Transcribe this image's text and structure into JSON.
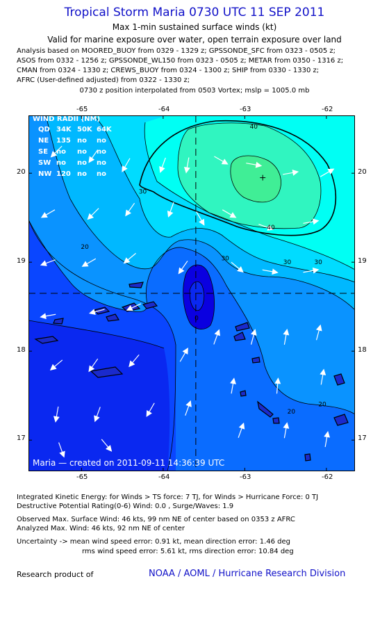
{
  "header": {
    "title": "Tropical Storm Maria 0730 UTC 11 SEP 2011",
    "subtitle1": "Max 1-min sustained surface winds (kt)",
    "subtitle2": "Valid for marine exposure over water, open terrain exposure over land",
    "analysis_lines": [
      "Analysis based on MOORED_BUOY from 0329 - 1329 z; GPSSONDE_SFC from 0323 - 0505 z;",
      "ASOS from 0332 - 1256 z; GPSSONDE_WL150 from 0323 - 0505 z; METAR from 0350 - 1316 z;",
      "CMAN from 0324 - 1330 z; CREWS_BUOY from 0324 - 1300 z; SHIP from 0330 - 1330 z;",
      "AFRC (User-defined adjusted) from 0322 - 1330 z;"
    ],
    "position_note": "0730 z position interpolated from 0503 Vortex; mslp = 1005.0 mb"
  },
  "map": {
    "lon_range": [
      -65.65,
      -61.65
    ],
    "lat_range": [
      16.65,
      20.65
    ],
    "lon_ticks": [
      -65,
      -64,
      -63,
      -62
    ],
    "lat_ticks": [
      17,
      18,
      19,
      20
    ],
    "lon_tick_labels": [
      "-65",
      "-64",
      "-63",
      "-62"
    ],
    "lat_tick_labels": [
      "17",
      "18",
      "19",
      "20"
    ],
    "center": {
      "lon": -63.6,
      "lat": 18.65
    },
    "max_wind_marker": {
      "lon": -62.78,
      "lat": 19.95
    },
    "contour_levels": [
      20,
      30,
      40
    ],
    "contour_labels": [
      {
        "text": "40",
        "lon": -62.89,
        "lat": 20.5
      },
      {
        "text": "40",
        "lon": -62.68,
        "lat": 19.37
      },
      {
        "text": "30",
        "lon": -64.25,
        "lat": 19.77
      },
      {
        "text": "30",
        "lon": -63.24,
        "lat": 19.02
      },
      {
        "text": "30",
        "lon": -62.48,
        "lat": 18.98
      },
      {
        "text": "30",
        "lon": -62.1,
        "lat": 18.98
      },
      {
        "text": "20",
        "lon": -64.96,
        "lat": 19.15
      },
      {
        "text": "20",
        "lon": -62.43,
        "lat": 17.3
      },
      {
        "text": "20",
        "lon": -62.05,
        "lat": 17.38
      },
      {
        "text": "0",
        "lon": -63.59,
        "lat": 18.35
      }
    ],
    "colors": {
      "c0": "#0a00e0",
      "c5": "#0a28f0",
      "c10": "#0a46ff",
      "c15": "#0a6cff",
      "c20": "#0a93ff",
      "c25": "#00b8ff",
      "c30": "#00dcff",
      "c35": "#00fff4",
      "c40": "#30f5c0",
      "c45": "#40ee96"
    },
    "wind_radii": {
      "heading": "WIND RADII (NM)",
      "header_row": [
        "QD",
        "34K",
        "50K",
        "64K"
      ],
      "rows": [
        [
          "NE",
          "135",
          "no",
          "no"
        ],
        [
          "SE",
          "no",
          "no",
          "no"
        ],
        [
          "SW",
          "no",
          "no",
          "no"
        ],
        [
          "NW",
          "120",
          "no",
          "no"
        ]
      ]
    },
    "credit": "Maria — created on 2011-09-11 14:36:39 UTC",
    "wind_arrows": [
      {
        "lon": -65.3,
        "lat": 20.25,
        "dir": 225
      },
      {
        "lon": -64.85,
        "lat": 20.2,
        "dir": 215
      },
      {
        "lon": -64.45,
        "lat": 20.1,
        "dir": 210
      },
      {
        "lon": -64.0,
        "lat": 20.1,
        "dir": 200
      },
      {
        "lon": -63.7,
        "lat": 20.1,
        "dir": 190
      },
      {
        "lon": -63.3,
        "lat": 20.15,
        "dir": 120
      },
      {
        "lon": -62.9,
        "lat": 20.1,
        "dir": 100
      },
      {
        "lon": -62.45,
        "lat": 20.0,
        "dir": 80
      },
      {
        "lon": -62.0,
        "lat": 20.0,
        "dir": 60
      },
      {
        "lon": -65.4,
        "lat": 19.55,
        "dir": 240
      },
      {
        "lon": -64.85,
        "lat": 19.55,
        "dir": 225
      },
      {
        "lon": -64.4,
        "lat": 19.6,
        "dir": 215
      },
      {
        "lon": -63.9,
        "lat": 19.6,
        "dir": 200
      },
      {
        "lon": -63.55,
        "lat": 19.5,
        "dir": 150
      },
      {
        "lon": -63.2,
        "lat": 19.55,
        "dir": 120
      },
      {
        "lon": -62.75,
        "lat": 19.4,
        "dir": 110
      },
      {
        "lon": -62.2,
        "lat": 19.45,
        "dir": 80
      },
      {
        "lon": -65.4,
        "lat": 19.0,
        "dir": 250
      },
      {
        "lon": -64.9,
        "lat": 19.0,
        "dir": 240
      },
      {
        "lon": -64.4,
        "lat": 19.05,
        "dir": 230
      },
      {
        "lon": -63.75,
        "lat": 18.95,
        "dir": 215
      },
      {
        "lon": -63.1,
        "lat": 18.95,
        "dir": 130
      },
      {
        "lon": -62.7,
        "lat": 18.9,
        "dir": 100
      },
      {
        "lon": -62.2,
        "lat": 18.9,
        "dir": 80
      },
      {
        "lon": -65.4,
        "lat": 18.4,
        "dir": 260
      },
      {
        "lon": -64.8,
        "lat": 18.45,
        "dir": 255
      },
      {
        "lon": -64.35,
        "lat": 18.5,
        "dir": 245
      },
      {
        "lon": -63.35,
        "lat": 18.15,
        "dir": 20
      },
      {
        "lon": -62.9,
        "lat": 18.15,
        "dir": 15
      },
      {
        "lon": -62.5,
        "lat": 18.15,
        "dir": 10
      },
      {
        "lon": -62.1,
        "lat": 18.2,
        "dir": 15
      },
      {
        "lon": -65.3,
        "lat": 17.85,
        "dir": 230
      },
      {
        "lon": -64.85,
        "lat": 17.85,
        "dir": 215
      },
      {
        "lon": -64.35,
        "lat": 17.9,
        "dir": 220
      },
      {
        "lon": -63.75,
        "lat": 17.95,
        "dir": 30
      },
      {
        "lon": -63.15,
        "lat": 17.6,
        "dir": 10
      },
      {
        "lon": -62.6,
        "lat": 17.6,
        "dir": 5
      },
      {
        "lon": -62.05,
        "lat": 17.7,
        "dir": 10
      },
      {
        "lon": -65.3,
        "lat": 17.3,
        "dir": 190
      },
      {
        "lon": -64.8,
        "lat": 17.3,
        "dir": 200
      },
      {
        "lon": -64.15,
        "lat": 17.35,
        "dir": 210
      },
      {
        "lon": -63.7,
        "lat": 17.35,
        "dir": 20
      },
      {
        "lon": -63.05,
        "lat": 17.1,
        "dir": 20
      },
      {
        "lon": -62.5,
        "lat": 17.1,
        "dir": 10
      },
      {
        "lon": -62.0,
        "lat": 17.0,
        "dir": 10
      },
      {
        "lon": -65.25,
        "lat": 16.9,
        "dir": 160
      },
      {
        "lon": -64.7,
        "lat": 16.95,
        "dir": 140
      }
    ]
  },
  "stats": {
    "line1": "Integrated Kinetic Energy:  for Winds > TS force: 7 TJ,  for Winds > Hurricane Force: 0 TJ",
    "line2": "Destructive Potential Rating(0-6)   Wind: 0.0 , Surge/Waves: 1.9",
    "line3": "Observed Max. Surface Wind: 46 kts, 99 nm NE of center based on 0353 z AFRC",
    "line4": "Analyzed Max. Wind: 46 kts, 92 nm NE of center",
    "line5": "Uncertainty -> mean wind speed error: 0.91 kt,   mean direction error: 1.46 deg",
    "line6": "rms wind speed error: 5.61 kt,   rms direction error: 10.84 deg"
  },
  "footer": {
    "left": "Research product of",
    "right": "NOAA / AOML / Hurricane Research Division"
  }
}
